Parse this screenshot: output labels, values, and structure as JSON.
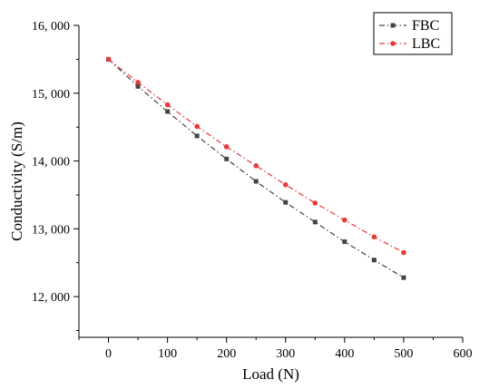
{
  "chart_data": {
    "type": "line",
    "title": "",
    "xlabel": "Load (N)",
    "ylabel": "Conductivity (S/m)",
    "xlim": [
      -50,
      600
    ],
    "ylim": [
      11400,
      16000
    ],
    "xticks": [
      0,
      100,
      200,
      300,
      400,
      500,
      600
    ],
    "yticks": [
      12000,
      13000,
      14000,
      15000,
      16000
    ],
    "xtick_labels": [
      "0",
      "100",
      "200",
      "300",
      "400",
      "500",
      "600"
    ],
    "ytick_labels": [
      "12, 000",
      "13, 000",
      "14, 000",
      "15, 000",
      "16, 000"
    ],
    "legend_position": "top-right",
    "grid": false,
    "x": [
      0,
      50,
      100,
      150,
      200,
      250,
      300,
      350,
      400,
      450,
      500
    ],
    "series": [
      {
        "name": "FBC",
        "color": "#444444",
        "marker": "square",
        "values": [
          15500,
          15100,
          14730,
          14370,
          14030,
          13700,
          13390,
          13100,
          12810,
          12540,
          12280
        ]
      },
      {
        "name": "LBC",
        "color": "#e8393b",
        "marker": "circle",
        "values": [
          15500,
          15160,
          14830,
          14510,
          14210,
          13930,
          13650,
          13380,
          13130,
          12880,
          12650
        ]
      }
    ]
  }
}
